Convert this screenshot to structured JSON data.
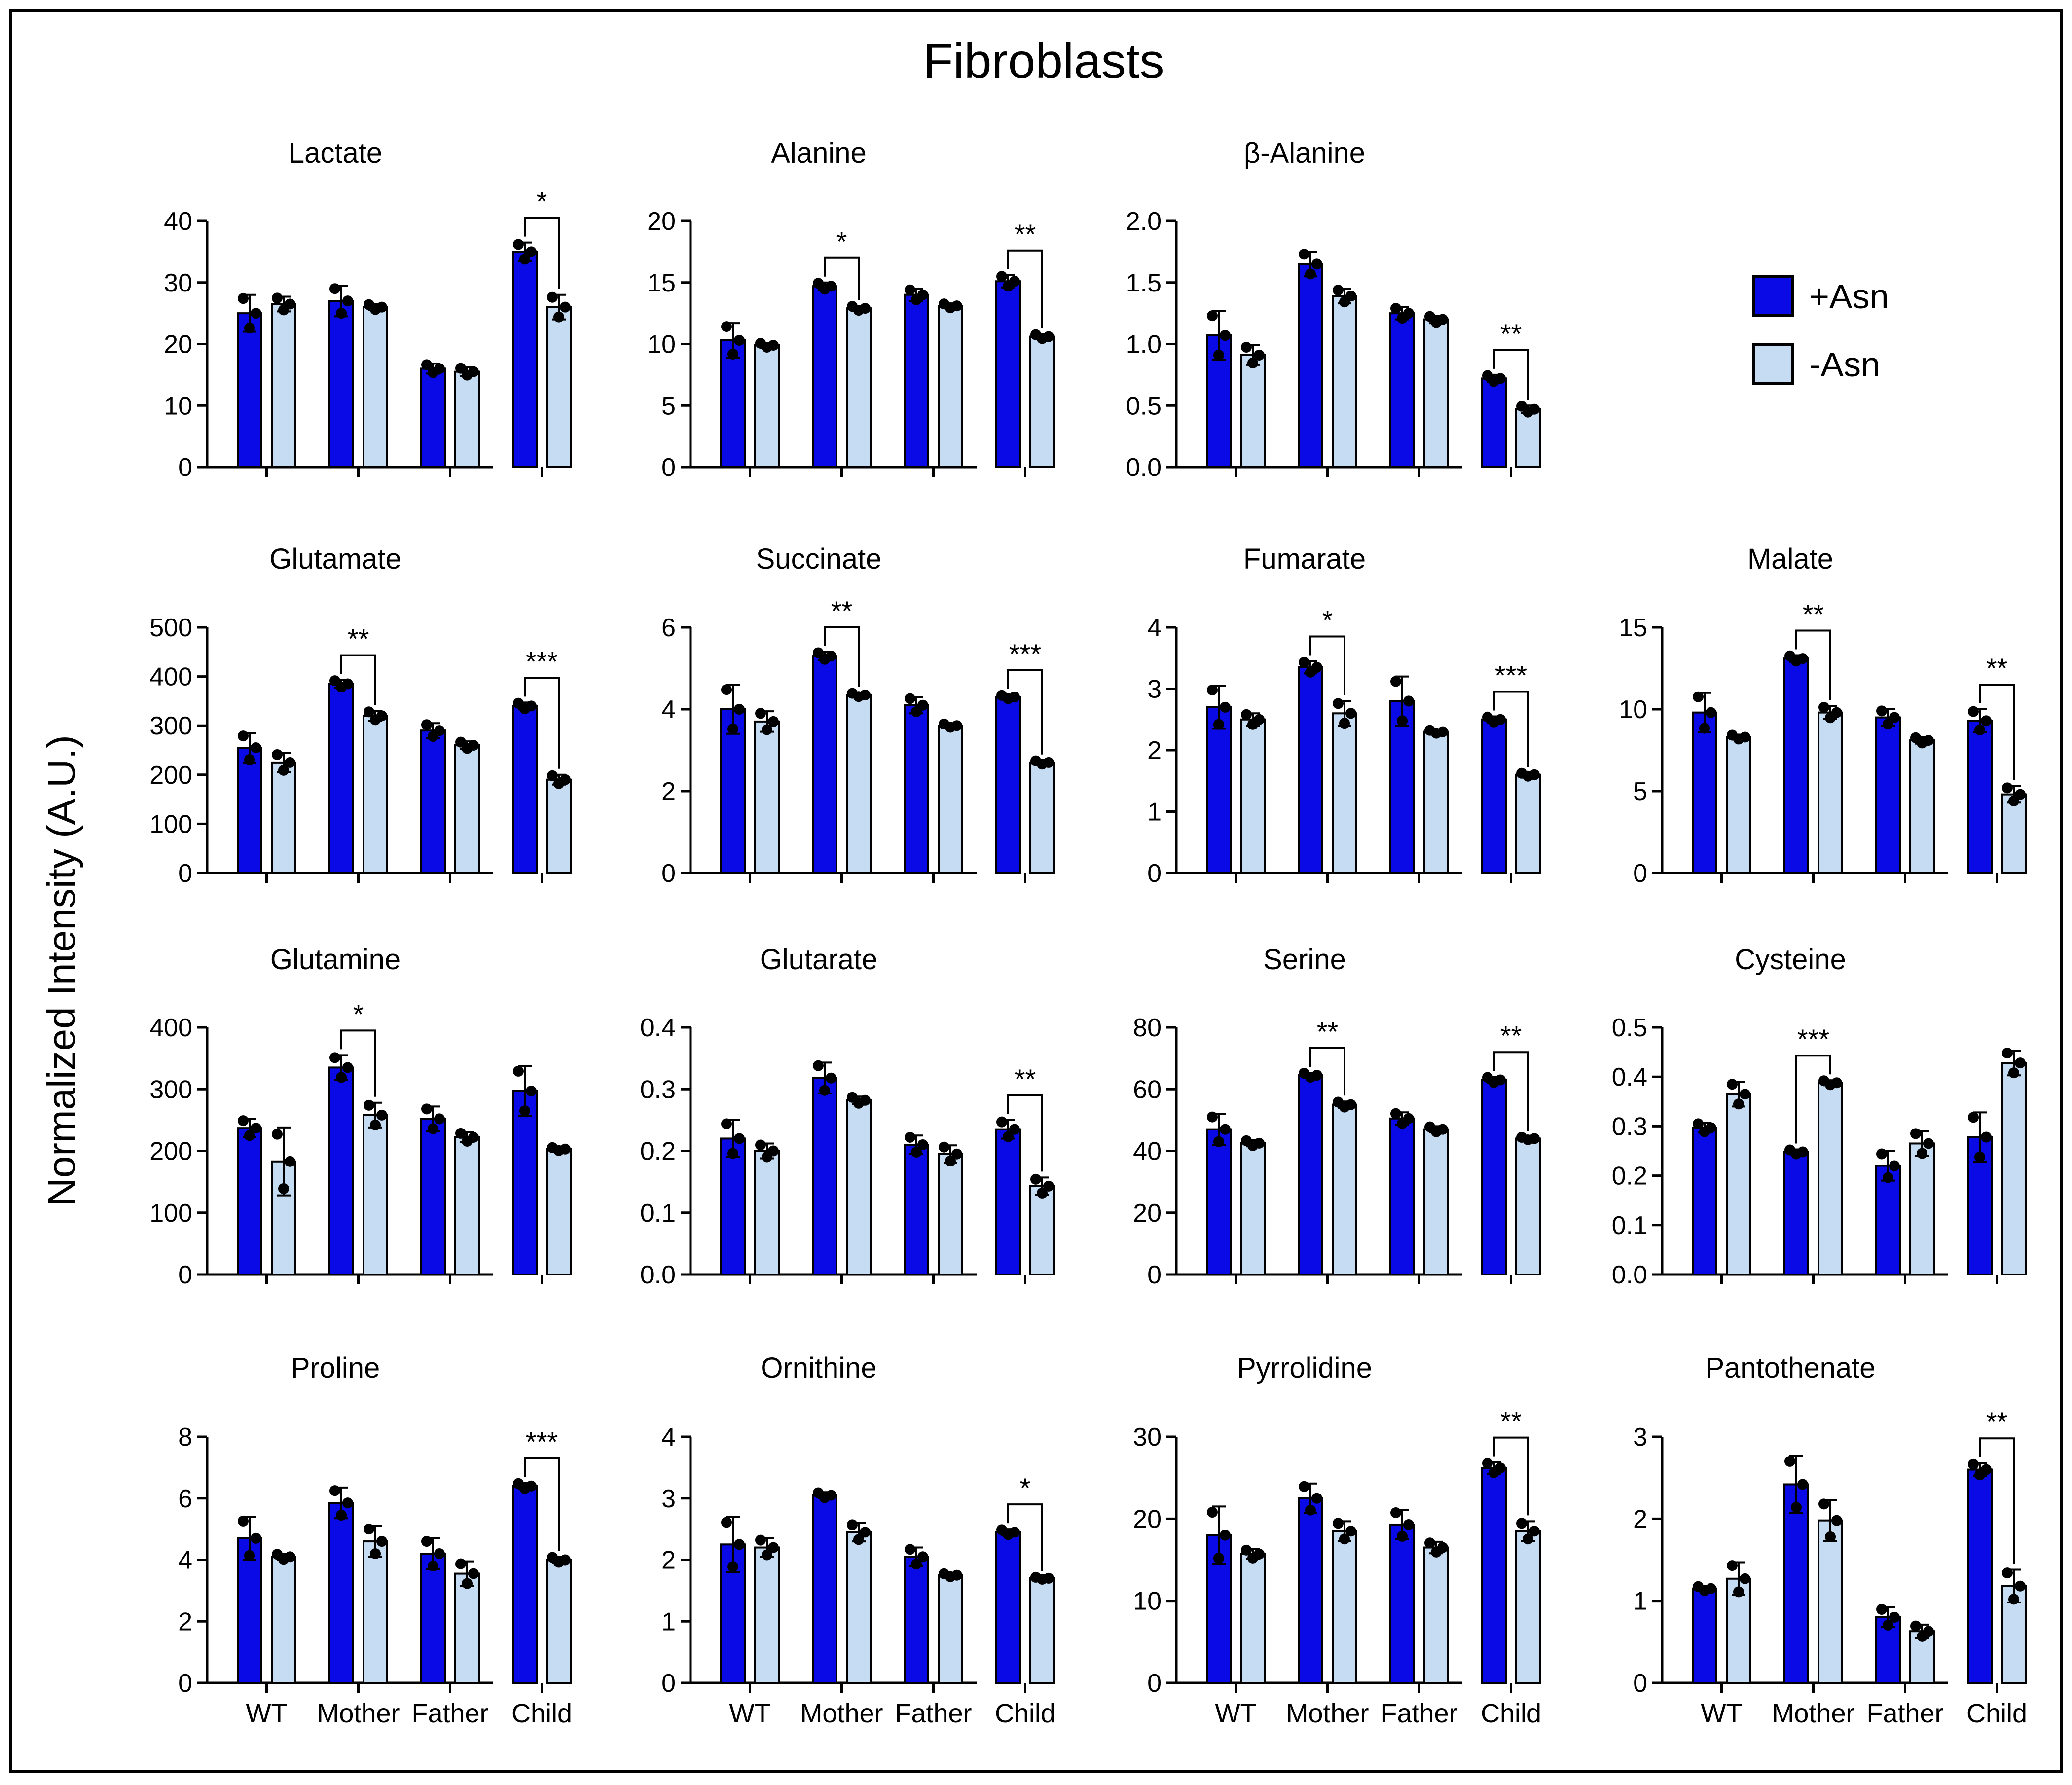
{
  "figure": {
    "title": "Fibroblasts",
    "ylabel": "Normalized Intensity (A.U.)",
    "groups": [
      "WT",
      "Mother",
      "Father",
      "Child"
    ],
    "legend": [
      {
        "label": "+Asn",
        "color": "#0a0ae6"
      },
      {
        "label": "-Asn",
        "color": "#c5dcf2"
      }
    ]
  },
  "chart_data": [
    {
      "type": "bar",
      "title": "Lactate",
      "ylim": [
        0,
        40
      ],
      "yticks": [
        "0",
        "10",
        "20",
        "30",
        "40"
      ],
      "categories": [
        "WT",
        "Mother",
        "Father",
        "Child"
      ],
      "series": [
        {
          "name": "+Asn",
          "values": [
            25,
            27,
            16,
            35
          ],
          "err": [
            3,
            2.5,
            0.8,
            1.5
          ]
        },
        {
          "name": "-Asn",
          "values": [
            26.5,
            26,
            15.5,
            26
          ],
          "err": [
            1.2,
            0.5,
            0.7,
            2
          ]
        }
      ],
      "brackets": [
        {
          "group": 3,
          "label": "*"
        }
      ]
    },
    {
      "type": "bar",
      "title": "Alanine",
      "ylim": [
        0,
        20
      ],
      "yticks": [
        "0",
        "5",
        "10",
        "15",
        "20"
      ],
      "categories": [
        "WT",
        "Mother",
        "Father",
        "Child"
      ],
      "series": [
        {
          "name": "+Asn",
          "values": [
            10.3,
            14.7,
            14,
            15.1
          ],
          "err": [
            1.4,
            0.3,
            0.5,
            0.5
          ]
        },
        {
          "name": "-Asn",
          "values": [
            9.9,
            12.9,
            13.1,
            10.6
          ],
          "err": [
            0.2,
            0.2,
            0.2,
            0.2
          ]
        }
      ],
      "brackets": [
        {
          "group": 1,
          "label": "*"
        },
        {
          "group": 3,
          "label": "**"
        }
      ]
    },
    {
      "type": "bar",
      "title": "β-Alanine",
      "ylim": [
        0,
        2
      ],
      "yticks": [
        "0.0",
        "0.5",
        "1.0",
        "1.5",
        "2.0"
      ],
      "categories": [
        "WT",
        "Mother",
        "Father",
        "Child"
      ],
      "series": [
        {
          "name": "+Asn",
          "values": [
            1.07,
            1.65,
            1.25,
            0.72
          ],
          "err": [
            0.2,
            0.1,
            0.05,
            0.03
          ]
        },
        {
          "name": "-Asn",
          "values": [
            0.91,
            1.39,
            1.2,
            0.47
          ],
          "err": [
            0.08,
            0.06,
            0.03,
            0.03
          ]
        }
      ],
      "brackets": [
        {
          "group": 3,
          "label": "**"
        }
      ]
    },
    {
      "type": "bar",
      "title": "Glutamate",
      "ylim": [
        0,
        500
      ],
      "yticks": [
        "0",
        "100",
        "200",
        "300",
        "400",
        "500"
      ],
      "categories": [
        "WT",
        "Mother",
        "Father",
        "Child"
      ],
      "series": [
        {
          "name": "+Asn",
          "values": [
            255,
            385,
            290,
            340
          ],
          "err": [
            30,
            8,
            15,
            7
          ]
        },
        {
          "name": "-Asn",
          "values": [
            225,
            320,
            260,
            190
          ],
          "err": [
            20,
            10,
            8,
            10
          ]
        }
      ],
      "brackets": [
        {
          "group": 1,
          "label": "**"
        },
        {
          "group": 3,
          "label": "***"
        }
      ]
    },
    {
      "type": "bar",
      "title": "Succinate",
      "ylim": [
        0,
        6
      ],
      "yticks": [
        "0",
        "2",
        "4",
        "6"
      ],
      "categories": [
        "WT",
        "Mother",
        "Father",
        "Child"
      ],
      "series": [
        {
          "name": "+Asn",
          "values": [
            4.0,
            5.3,
            4.1,
            4.3
          ],
          "err": [
            0.6,
            0.1,
            0.2,
            0.05
          ]
        },
        {
          "name": "-Asn",
          "values": [
            3.7,
            4.35,
            3.6,
            2.7
          ],
          "err": [
            0.25,
            0.05,
            0.05,
            0.05
          ]
        }
      ],
      "brackets": [
        {
          "group": 1,
          "label": "**"
        },
        {
          "group": 3,
          "label": "***"
        }
      ]
    },
    {
      "type": "bar",
      "title": "Fumarate",
      "ylim": [
        0,
        4
      ],
      "yticks": [
        "0",
        "1",
        "2",
        "3",
        "4"
      ],
      "categories": [
        "WT",
        "Mother",
        "Father",
        "Child"
      ],
      "series": [
        {
          "name": "+Asn",
          "values": [
            2.7,
            3.35,
            2.8,
            2.5
          ],
          "err": [
            0.35,
            0.1,
            0.4,
            0.05
          ]
        },
        {
          "name": "-Asn",
          "values": [
            2.5,
            2.6,
            2.3,
            1.6
          ],
          "err": [
            0.1,
            0.2,
            0.03,
            0.03
          ]
        }
      ],
      "brackets": [
        {
          "group": 1,
          "label": "*"
        },
        {
          "group": 3,
          "label": "***"
        }
      ]
    },
    {
      "type": "bar",
      "title": "Malate",
      "ylim": [
        0,
        15
      ],
      "yticks": [
        "0",
        "5",
        "10",
        "15"
      ],
      "categories": [
        "WT",
        "Mother",
        "Father",
        "Child"
      ],
      "series": [
        {
          "name": "+Asn",
          "values": [
            9.8,
            13.1,
            9.5,
            9.3
          ],
          "err": [
            1.2,
            0.2,
            0.5,
            0.7
          ]
        },
        {
          "name": "-Asn",
          "values": [
            8.3,
            9.8,
            8.1,
            4.8
          ],
          "err": [
            0.15,
            0.4,
            0.2,
            0.5
          ]
        }
      ],
      "brackets": [
        {
          "group": 1,
          "label": "**"
        },
        {
          "group": 3,
          "label": "**"
        }
      ]
    },
    {
      "type": "bar",
      "title": "Glutamine",
      "ylim": [
        0,
        400
      ],
      "yticks": [
        "0",
        "100",
        "200",
        "300",
        "400"
      ],
      "categories": [
        "WT",
        "Mother",
        "Father",
        "Child"
      ],
      "series": [
        {
          "name": "+Asn",
          "values": [
            237,
            335,
            252,
            297
          ],
          "err": [
            15,
            20,
            20,
            40
          ]
        },
        {
          "name": "-Asn",
          "values": [
            183,
            258,
            222,
            203
          ],
          "err": [
            55,
            20,
            8,
            3
          ]
        }
      ],
      "brackets": [
        {
          "group": 1,
          "label": "*"
        }
      ]
    },
    {
      "type": "bar",
      "title": "Glutarate",
      "ylim": [
        0,
        0.4
      ],
      "yticks": [
        "0.0",
        "0.1",
        "0.2",
        "0.3",
        "0.4"
      ],
      "categories": [
        "WT",
        "Mother",
        "Father",
        "Child"
      ],
      "series": [
        {
          "name": "+Asn",
          "values": [
            0.22,
            0.318,
            0.21,
            0.235
          ],
          "err": [
            0.03,
            0.025,
            0.015,
            0.015
          ]
        },
        {
          "name": "-Asn",
          "values": [
            0.2,
            0.282,
            0.195,
            0.143
          ],
          "err": [
            0.012,
            0.006,
            0.014,
            0.014
          ]
        }
      ],
      "brackets": [
        {
          "group": 3,
          "label": "**"
        }
      ]
    },
    {
      "type": "bar",
      "title": "Serine",
      "ylim": [
        0,
        80
      ],
      "yticks": [
        "0",
        "20",
        "40",
        "60",
        "80"
      ],
      "categories": [
        "WT",
        "Mother",
        "Father",
        "Child"
      ],
      "series": [
        {
          "name": "+Asn",
          "values": [
            47,
            64.5,
            50.5,
            63
          ],
          "err": [
            5,
            0.8,
            2,
            1
          ]
        },
        {
          "name": "-Asn",
          "values": [
            42.5,
            55,
            47,
            44
          ],
          "err": [
            1,
            1,
            1,
            0.5
          ]
        }
      ],
      "brackets": [
        {
          "group": 1,
          "label": "**"
        },
        {
          "group": 3,
          "label": "**"
        }
      ]
    },
    {
      "type": "bar",
      "title": "Cysteine",
      "ylim": [
        0,
        0.5
      ],
      "yticks": [
        "0.0",
        "0.1",
        "0.2",
        "0.3",
        "0.4",
        "0.5"
      ],
      "categories": [
        "WT",
        "Mother",
        "Father",
        "Child"
      ],
      "series": [
        {
          "name": "+Asn",
          "values": [
            0.297,
            0.248,
            0.22,
            0.278
          ],
          "err": [
            0.01,
            0.005,
            0.03,
            0.05
          ]
        },
        {
          "name": "-Asn",
          "values": [
            0.365,
            0.388,
            0.265,
            0.428
          ],
          "err": [
            0.025,
            0.005,
            0.025,
            0.025
          ]
        }
      ],
      "brackets": [
        {
          "group": 1,
          "label": "***"
        }
      ]
    },
    {
      "type": "bar",
      "title": "Proline",
      "ylim": [
        0,
        8
      ],
      "yticks": [
        "0",
        "2",
        "4",
        "6",
        "8"
      ],
      "categories": [
        "WT",
        "Mother",
        "Father",
        "Child"
      ],
      "series": [
        {
          "name": "+Asn",
          "values": [
            4.7,
            5.85,
            4.2,
            6.4
          ],
          "err": [
            0.7,
            0.5,
            0.5,
            0.1
          ]
        },
        {
          "name": "-Asn",
          "values": [
            4.1,
            4.6,
            3.55,
            4.0
          ],
          "err": [
            0.1,
            0.5,
            0.4,
            0.1
          ]
        }
      ],
      "brackets": [
        {
          "group": 3,
          "label": "***"
        }
      ]
    },
    {
      "type": "bar",
      "title": "Ornithine",
      "ylim": [
        0,
        4
      ],
      "yticks": [
        "0",
        "1",
        "2",
        "3",
        "4"
      ],
      "categories": [
        "WT",
        "Mother",
        "Father",
        "Child"
      ],
      "series": [
        {
          "name": "+Asn",
          "values": [
            2.25,
            3.05,
            2.05,
            2.45
          ],
          "err": [
            0.45,
            0.05,
            0.15,
            0.05
          ]
        },
        {
          "name": "-Asn",
          "values": [
            2.2,
            2.45,
            1.75,
            1.7
          ],
          "err": [
            0.15,
            0.15,
            0.03,
            0.02
          ]
        }
      ],
      "brackets": [
        {
          "group": 3,
          "label": "*"
        }
      ]
    },
    {
      "type": "bar",
      "title": "Pyrrolidine",
      "ylim": [
        0,
        30
      ],
      "yticks": [
        "0",
        "10",
        "20",
        "30"
      ],
      "categories": [
        "WT",
        "Mother",
        "Father",
        "Child"
      ],
      "series": [
        {
          "name": "+Asn",
          "values": [
            18,
            22.5,
            19.3,
            26.2
          ],
          "err": [
            3.5,
            1.8,
            1.8,
            0.7
          ]
        },
        {
          "name": "-Asn",
          "values": [
            15.7,
            18.5,
            16.5,
            18.5
          ],
          "err": [
            0.6,
            1.2,
            0.7,
            1.2
          ]
        }
      ],
      "brackets": [
        {
          "group": 3,
          "label": "**"
        }
      ]
    },
    {
      "type": "bar",
      "title": "Pantothenate",
      "ylim": [
        0,
        3
      ],
      "yticks": [
        "0",
        "1",
        "2",
        "3"
      ],
      "categories": [
        "WT",
        "Mother",
        "Father",
        "Child"
      ],
      "series": [
        {
          "name": "+Asn",
          "values": [
            1.15,
            2.42,
            0.8,
            2.6
          ],
          "err": [
            0.03,
            0.35,
            0.12,
            0.08
          ]
        },
        {
          "name": "-Asn",
          "values": [
            1.27,
            1.98,
            0.63,
            1.18
          ],
          "err": [
            0.2,
            0.25,
            0.08,
            0.2
          ]
        }
      ],
      "brackets": [
        {
          "group": 3,
          "label": "**"
        }
      ]
    }
  ]
}
